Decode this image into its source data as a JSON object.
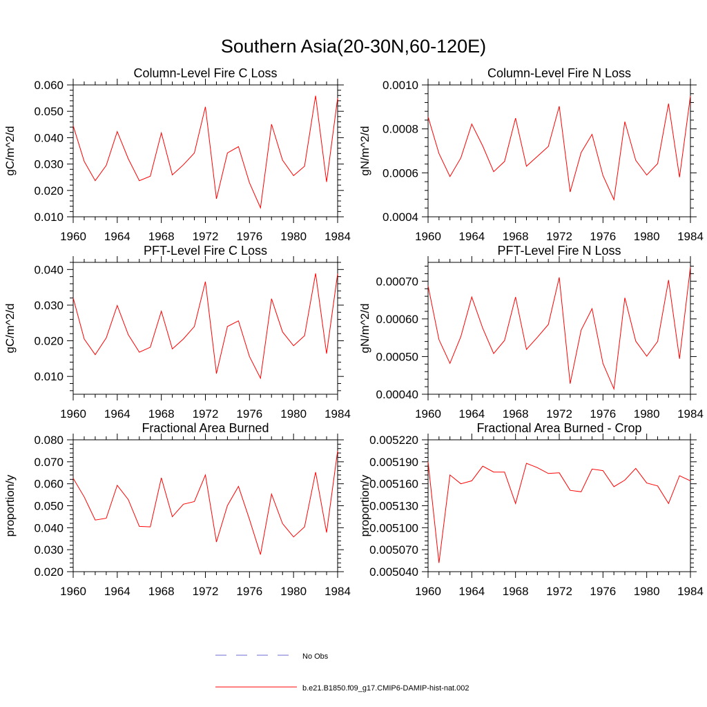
{
  "figure_title": "Southern Asia(20-30N,60-120E)",
  "colors": {
    "model": "#ff0000",
    "obs": "#6b6bd6",
    "axis": "#000000"
  },
  "legend": {
    "obs_label": "No Obs",
    "model_label": "b.e21.B1850.f09_g17.CMIP6-DAMIP-hist-nat.002"
  },
  "chart_data": [
    {
      "type": "line",
      "title": "Column-Level Fire C Loss",
      "ylabel": "gC/m^2/d",
      "xlim": [
        1960,
        1984
      ],
      "ylim": [
        0.01,
        0.06
      ],
      "xticks": [
        "1960",
        "1964",
        "1968",
        "1972",
        "1976",
        "1980",
        "1984"
      ],
      "yticks": [
        "0.010",
        "0.020",
        "0.030",
        "0.040",
        "0.050",
        "0.060"
      ],
      "x": [
        1960,
        1961,
        1962,
        1963,
        1964,
        1965,
        1966,
        1967,
        1968,
        1969,
        1970,
        1971,
        1972,
        1973,
        1974,
        1975,
        1976,
        1977,
        1978,
        1979,
        1980,
        1981,
        1982,
        1983,
        1984
      ],
      "series": [
        {
          "name": "b.e21.B1850.f09_g17.CMIP6-DAMIP-hist-nat.002",
          "values": [
            0.0445,
            0.031,
            0.0237,
            0.0295,
            0.0423,
            0.032,
            0.0237,
            0.0254,
            0.0418,
            0.0259,
            0.0297,
            0.0342,
            0.0517,
            0.0168,
            0.0342,
            0.0366,
            0.0229,
            0.0134,
            0.0451,
            0.0315,
            0.0256,
            0.0292,
            0.0559,
            0.0232,
            0.055
          ]
        }
      ]
    },
    {
      "type": "line",
      "title": "Column-Level Fire N Loss",
      "ylabel": "gN/m^2/d",
      "xlim": [
        1960,
        1984
      ],
      "ylim": [
        0.0004,
        0.001
      ],
      "xticks": [
        "1960",
        "1964",
        "1968",
        "1972",
        "1976",
        "1980",
        "1984"
      ],
      "yticks": [
        "0.0004",
        "0.0006",
        "0.0008",
        "0.0010"
      ],
      "x": [
        1960,
        1961,
        1962,
        1963,
        1964,
        1965,
        1966,
        1967,
        1968,
        1969,
        1970,
        1971,
        1972,
        1973,
        1974,
        1975,
        1976,
        1977,
        1978,
        1979,
        1980,
        1981,
        1982,
        1983,
        1984
      ],
      "series": [
        {
          "name": "b.e21.B1850.f09_g17.CMIP6-DAMIP-hist-nat.002",
          "values": [
            0.000855,
            0.000688,
            0.000583,
            0.000668,
            0.000822,
            0.000722,
            0.000605,
            0.000652,
            0.000849,
            0.00063,
            0.000675,
            0.00072,
            0.000903,
            0.000513,
            0.000692,
            0.000775,
            0.000588,
            0.000478,
            0.000833,
            0.000657,
            0.00059,
            0.000642,
            0.000915,
            0.00058,
            0.00095
          ]
        }
      ]
    },
    {
      "type": "line",
      "title": "PFT-Level Fire C Loss",
      "ylabel": "gC/m^2/d",
      "xlim": [
        1960,
        1984
      ],
      "ylim": [
        0.005,
        0.042
      ],
      "xticks": [
        "1960",
        "1964",
        "1968",
        "1972",
        "1976",
        "1980",
        "1984"
      ],
      "yticks": [
        "0.010",
        "0.020",
        "0.030",
        "0.040"
      ],
      "x": [
        1960,
        1961,
        1962,
        1963,
        1964,
        1965,
        1966,
        1967,
        1968,
        1969,
        1970,
        1971,
        1972,
        1973,
        1974,
        1975,
        1976,
        1977,
        1978,
        1979,
        1980,
        1981,
        1982,
        1983,
        1984
      ],
      "series": [
        {
          "name": "b.e21.B1850.f09_g17.CMIP6-DAMIP-hist-nat.002",
          "values": [
            0.032,
            0.0205,
            0.0161,
            0.0208,
            0.0299,
            0.0217,
            0.0168,
            0.0182,
            0.0283,
            0.0177,
            0.0205,
            0.024,
            0.0366,
            0.0108,
            0.024,
            0.0256,
            0.0156,
            0.0095,
            0.0318,
            0.0225,
            0.0186,
            0.0214,
            0.0389,
            0.0164,
            0.0388
          ]
        }
      ]
    },
    {
      "type": "line",
      "title": "PFT-Level Fire N Loss",
      "ylabel": "gN/m^2/d",
      "xlim": [
        1960,
        1984
      ],
      "ylim": [
        0.0004,
        0.00075
      ],
      "xticks": [
        "1960",
        "1964",
        "1968",
        "1972",
        "1976",
        "1980",
        "1984"
      ],
      "yticks": [
        "0.00040",
        "0.00050",
        "0.00060",
        "0.00070"
      ],
      "x": [
        1960,
        1961,
        1962,
        1963,
        1964,
        1965,
        1966,
        1967,
        1968,
        1969,
        1970,
        1971,
        1972,
        1973,
        1974,
        1975,
        1976,
        1977,
        1978,
        1979,
        1980,
        1981,
        1982,
        1983,
        1984
      ],
      "series": [
        {
          "name": "b.e21.B1850.f09_g17.CMIP6-DAMIP-hist-nat.002",
          "values": [
            0.000688,
            0.000545,
            0.000482,
            0.000553,
            0.000658,
            0.000575,
            0.000508,
            0.000543,
            0.000658,
            0.000519,
            0.000551,
            0.000585,
            0.00071,
            0.000428,
            0.00057,
            0.000627,
            0.000482,
            0.000414,
            0.000656,
            0.000541,
            0.000501,
            0.00054,
            0.000703,
            0.000494,
            0.000738
          ]
        }
      ]
    },
    {
      "type": "line",
      "title": "Fractional Area Burned",
      "ylabel": "proportion/y",
      "xlim": [
        1960,
        1984
      ],
      "ylim": [
        0.02,
        0.08
      ],
      "xticks": [
        "1960",
        "1964",
        "1968",
        "1972",
        "1976",
        "1980",
        "1984"
      ],
      "yticks": [
        "0.020",
        "0.030",
        "0.040",
        "0.050",
        "0.060",
        "0.070",
        "0.080"
      ],
      "x": [
        1960,
        1961,
        1962,
        1963,
        1964,
        1965,
        1966,
        1967,
        1968,
        1969,
        1970,
        1971,
        1972,
        1973,
        1974,
        1975,
        1976,
        1977,
        1978,
        1979,
        1980,
        1981,
        1982,
        1983,
        1984
      ],
      "series": [
        {
          "name": "b.e21.B1850.f09_g17.CMIP6-DAMIP-hist-nat.002",
          "values": [
            0.0625,
            0.054,
            0.0435,
            0.0443,
            0.0593,
            0.0528,
            0.0406,
            0.0404,
            0.0627,
            0.045,
            0.0507,
            0.0519,
            0.064,
            0.0335,
            0.0501,
            0.0588,
            0.0438,
            0.0278,
            0.0553,
            0.0419,
            0.0358,
            0.0404,
            0.0653,
            0.0378,
            0.075
          ]
        }
      ]
    },
    {
      "type": "line",
      "title": "Fractional Area Burned - Crop",
      "ylabel": "proportion/y",
      "xlim": [
        1960,
        1984
      ],
      "ylim": [
        0.00504,
        0.00522
      ],
      "xticks": [
        "1960",
        "1964",
        "1968",
        "1972",
        "1976",
        "1980",
        "1984"
      ],
      "yticks": [
        "0.005040",
        "0.005070",
        "0.005100",
        "0.005130",
        "0.005160",
        "0.005190",
        "0.005220"
      ],
      "x": [
        1960,
        1961,
        1962,
        1963,
        1964,
        1965,
        1966,
        1967,
        1968,
        1969,
        1970,
        1971,
        1972,
        1973,
        1974,
        1975,
        1976,
        1977,
        1978,
        1979,
        1980,
        1981,
        1982,
        1983,
        1984
      ],
      "series": [
        {
          "name": "b.e21.B1850.f09_g17.CMIP6-DAMIP-hist-nat.002",
          "values": [
            0.00519,
            0.005052,
            0.005172,
            0.00516,
            0.005164,
            0.005184,
            0.005176,
            0.005176,
            0.005133,
            0.005188,
            0.005182,
            0.005174,
            0.005175,
            0.005151,
            0.005149,
            0.00518,
            0.005178,
            0.005156,
            0.005165,
            0.005181,
            0.005161,
            0.005157,
            0.005133,
            0.005171,
            0.005164
          ]
        }
      ]
    }
  ]
}
